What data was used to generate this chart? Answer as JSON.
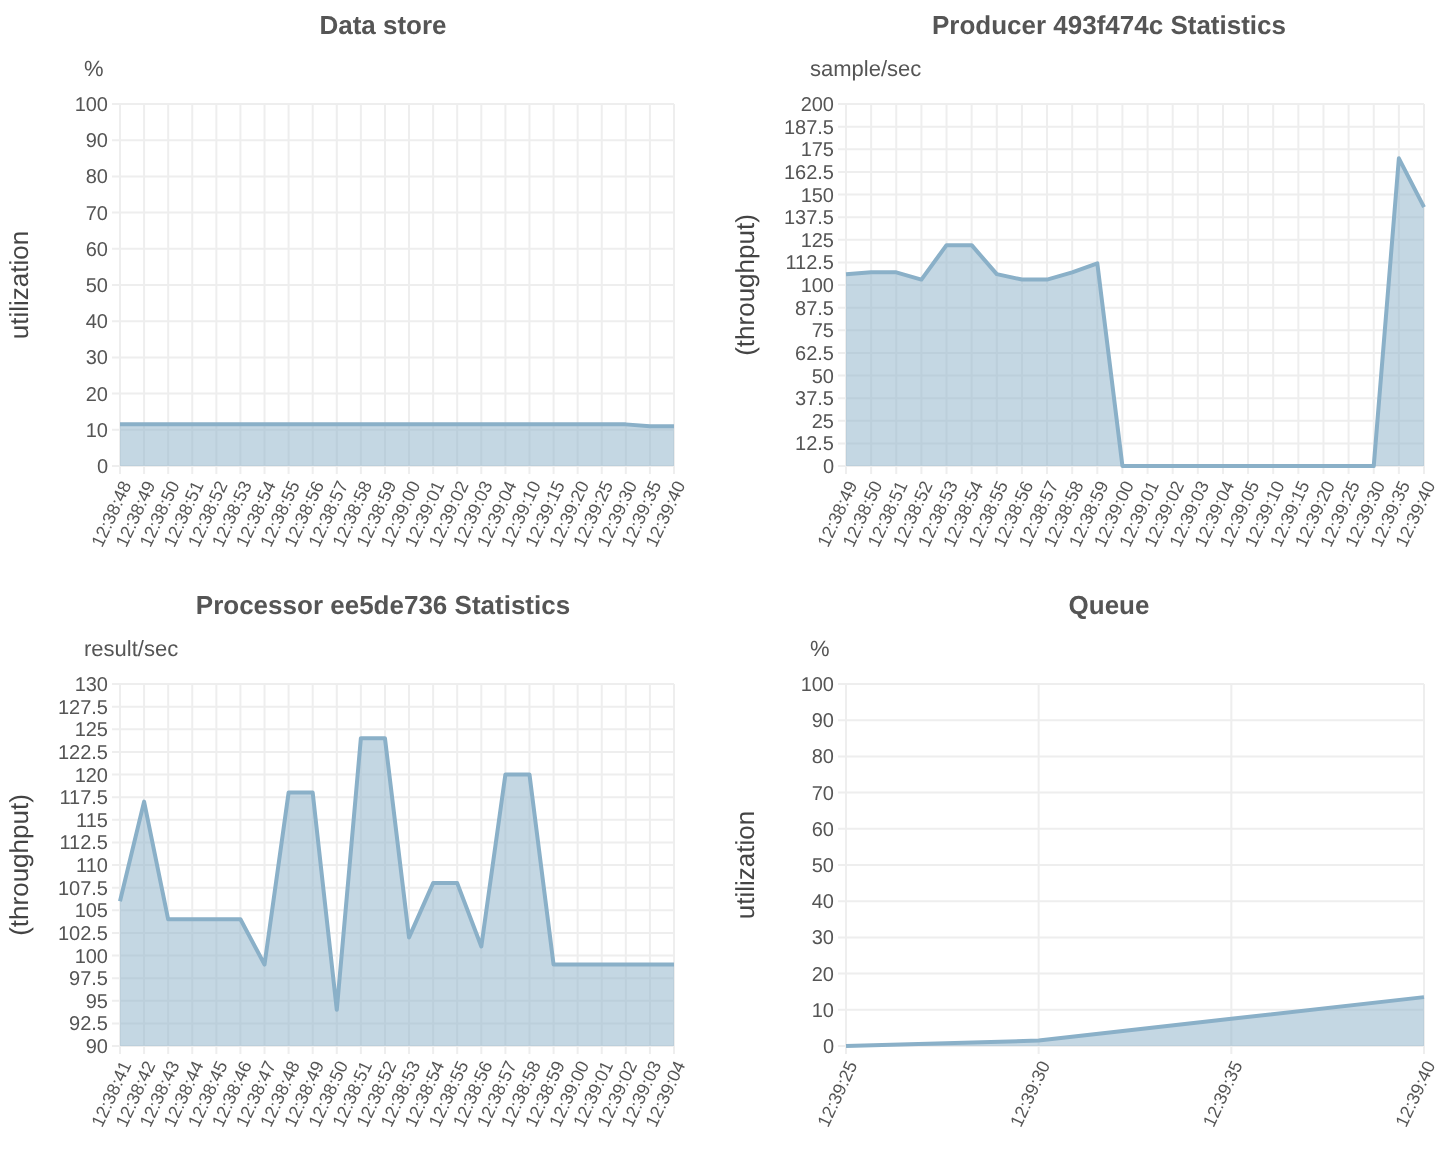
{
  "chart_data": [
    {
      "type": "area",
      "title": "Data store",
      "ylabel": "utilization",
      "annotations": [
        "%"
      ],
      "categories": [
        "12:38:48",
        "12:38:49",
        "12:38:50",
        "12:38:51",
        "12:38:52",
        "12:38:53",
        "12:38:54",
        "12:38:55",
        "12:38:56",
        "12:38:57",
        "12:38:58",
        "12:38:59",
        "12:39:00",
        "12:39:01",
        "12:39:02",
        "12:39:03",
        "12:39:04",
        "12:39:10",
        "12:39:15",
        "12:39:20",
        "12:39:25",
        "12:39:30",
        "12:39:35",
        "12:39:40"
      ],
      "series": [
        {
          "color": "#8ab0c8",
          "values": [
            11.5,
            11.5,
            11.5,
            11.5,
            11.5,
            11.5,
            11.5,
            11.5,
            11.5,
            11.5,
            11.5,
            11.5,
            11.5,
            11.5,
            11.5,
            11.5,
            11.5,
            11.5,
            11.5,
            11.5,
            11.5,
            11.5,
            11,
            11
          ]
        }
      ],
      "ylim": [
        0,
        100
      ],
      "yticks": [
        0,
        10,
        20,
        30,
        40,
        50,
        60,
        70,
        80,
        90,
        100
      ],
      "grid": true
    },
    {
      "type": "area",
      "title": "Producer 493f474c Statistics",
      "ylabel": "(throughput)",
      "annotations": [
        "sample/sec"
      ],
      "categories": [
        "12:38:49",
        "12:38:50",
        "12:38:51",
        "12:38:52",
        "12:38:53",
        "12:38:54",
        "12:38:55",
        "12:38:56",
        "12:38:57",
        "12:38:58",
        "12:38:59",
        "12:39:00",
        "12:39:01",
        "12:39:02",
        "12:39:03",
        "12:39:04",
        "12:39:05",
        "12:39:10",
        "12:39:15",
        "12:39:20",
        "12:39:25",
        "12:39:30",
        "12:39:35",
        "12:39:40"
      ],
      "series": [
        {
          "color": "#8ab0c8",
          "values": [
            106,
            107,
            107,
            103,
            122,
            122,
            106,
            103,
            103,
            107,
            112,
            0,
            0,
            0,
            0,
            0,
            0,
            0,
            0,
            0,
            0,
            0,
            170,
            143
          ]
        }
      ],
      "ylim": [
        0,
        200
      ],
      "yticks": [
        0,
        12.5,
        25,
        37.5,
        50,
        62.5,
        75,
        87.5,
        100,
        112.5,
        125,
        137.5,
        150,
        162.5,
        175,
        187.5,
        200
      ],
      "grid": true
    },
    {
      "type": "area",
      "title": "Processor ee5de736 Statistics",
      "ylabel": "(throughput)",
      "annotations": [
        "result/sec"
      ],
      "categories": [
        "12:38:41",
        "12:38:42",
        "12:38:43",
        "12:38:44",
        "12:38:45",
        "12:38:46",
        "12:38:47",
        "12:38:48",
        "12:38:49",
        "12:38:50",
        "12:38:51",
        "12:38:52",
        "12:38:53",
        "12:38:54",
        "12:38:55",
        "12:38:56",
        "12:38:57",
        "12:38:58",
        "12:38:59",
        "12:39:00",
        "12:39:01",
        "12:39:02",
        "12:39:03",
        "12:39:04"
      ],
      "series": [
        {
          "color": "#8ab0c8",
          "values": [
            106,
            117,
            104,
            104,
            104,
            104,
            99,
            118,
            118,
            94,
            124,
            124,
            102,
            108,
            108,
            101,
            120,
            120,
            99,
            99,
            99,
            99,
            99,
            99
          ]
        }
      ],
      "ylim": [
        90,
        130
      ],
      "yticks": [
        90,
        92.5,
        95,
        97.5,
        100,
        102.5,
        105,
        107.5,
        110,
        112.5,
        115,
        117.5,
        120,
        122.5,
        125,
        127.5,
        130
      ],
      "grid": true
    },
    {
      "type": "area",
      "title": "Queue",
      "ylabel": "utilization",
      "annotations": [
        "%"
      ],
      "categories": [
        "12:39:25",
        "12:39:30",
        "12:39:35",
        "12:39:40"
      ],
      "series": [
        {
          "color": "#8ab0c8",
          "values": [
            0,
            1.5,
            7.5,
            13.5
          ]
        }
      ],
      "ylim": [
        0,
        100
      ],
      "yticks": [
        0,
        10,
        20,
        30,
        40,
        50,
        60,
        70,
        80,
        90,
        100
      ],
      "grid": true
    }
  ]
}
